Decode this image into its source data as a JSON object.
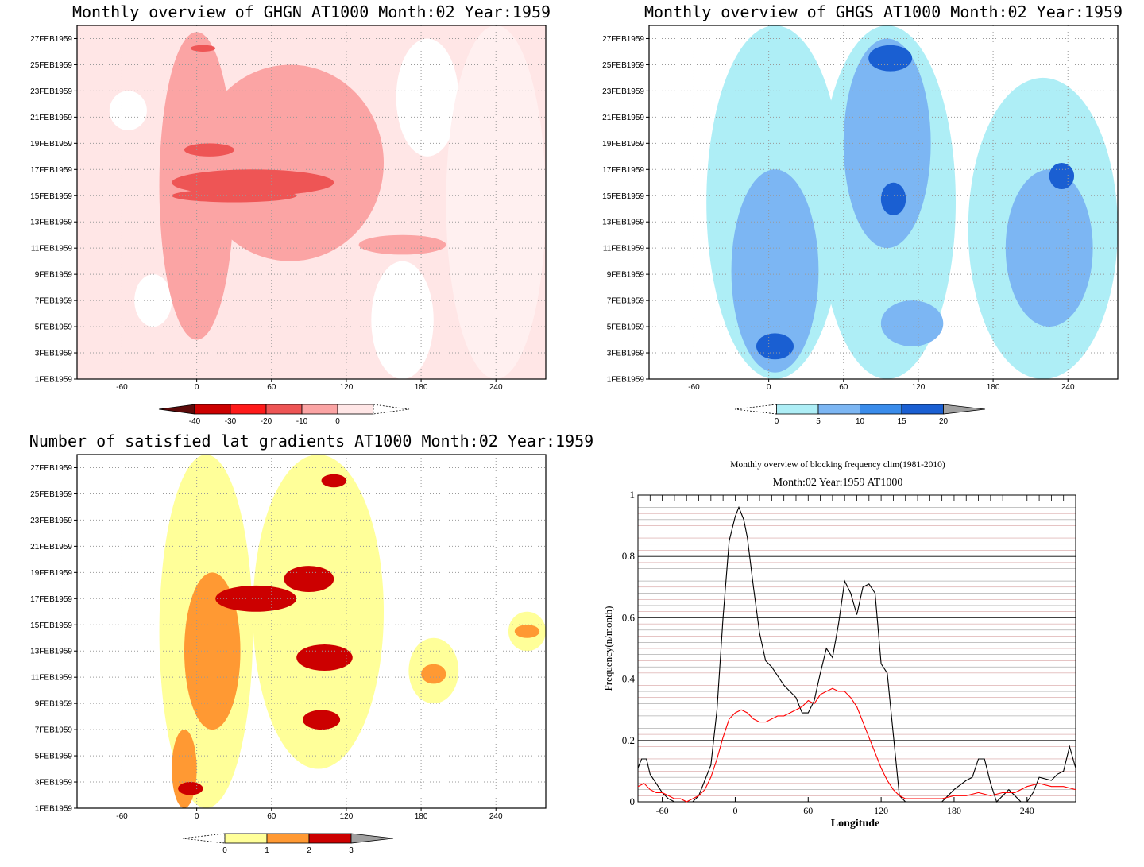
{
  "chart_data": [
    {
      "type": "heatmap",
      "title": "Monthly overview of GHGN AT1000 Month:02 Year:1959",
      "x_ticks": [
        -60,
        0,
        60,
        120,
        180,
        240
      ],
      "xlim": [
        -96,
        280
      ],
      "y_ticks": [
        "1FEB1959",
        "3FEB1959",
        "5FEB1959",
        "7FEB1959",
        "9FEB1959",
        "11FEB1959",
        "13FEB1959",
        "15FEB1959",
        "17FEB1959",
        "19FEB1959",
        "21FEB1959",
        "23FEB1959",
        "25FEB1959",
        "27FEB1959"
      ],
      "ylim": [
        1,
        28
      ],
      "grid": true,
      "colorbar": {
        "levels": [
          "-40",
          "-30",
          "-20",
          "-10",
          "0"
        ],
        "colors": [
          "#5c0a0a",
          "#cc0000",
          "#ff1a1a",
          "#ee5555",
          "#fba4a4",
          "#ffe6e6",
          "#ffffff"
        ]
      },
      "cells": [
        {
          "lon": [
            -30,
            30
          ],
          "day": [
            4,
            27.5
          ],
          "level": 2
        },
        {
          "lon": [
            0,
            150
          ],
          "day": [
            10,
            25
          ],
          "level": 2
        },
        {
          "lon": [
            -20,
            80
          ],
          "day": [
            14.5,
            15.5
          ],
          "level": 3
        },
        {
          "lon": [
            -20,
            110
          ],
          "day": [
            15,
            17
          ],
          "level": 3
        },
        {
          "lon": [
            -10,
            30
          ],
          "day": [
            18,
            19
          ],
          "level": 3
        },
        {
          "lon": [
            130,
            200
          ],
          "day": [
            10.5,
            12
          ],
          "level": 2
        },
        {
          "lon": [
            -5,
            15
          ],
          "day": [
            26,
            26.5
          ],
          "level": 3
        }
      ]
    },
    {
      "type": "heatmap",
      "title": "Monthly overview of GHGS AT1000 Month:02 Year:1959",
      "x_ticks": [
        -60,
        0,
        60,
        120,
        180,
        240
      ],
      "xlim": [
        -96,
        280
      ],
      "y_ticks": [
        "1FEB1959",
        "3FEB1959",
        "5FEB1959",
        "7FEB1959",
        "9FEB1959",
        "11FEB1959",
        "13FEB1959",
        "15FEB1959",
        "17FEB1959",
        "19FEB1959",
        "21FEB1959",
        "23FEB1959",
        "25FEB1959",
        "27FEB1959"
      ],
      "ylim": [
        1,
        28
      ],
      "grid": true,
      "colorbar": {
        "levels": [
          "0",
          "5",
          "10",
          "15",
          "20"
        ],
        "colors": [
          "#ffffff",
          "#aeeef6",
          "#7cb6f3",
          "#3a8ceb",
          "#1a5fd2",
          "#a0a0a0"
        ]
      },
      "cells": [
        {
          "lon": [
            -30,
            40
          ],
          "day": [
            1.5,
            17
          ],
          "level": 1
        },
        {
          "lon": [
            -10,
            20
          ],
          "day": [
            2.5,
            4.5
          ],
          "level": 3
        },
        {
          "lon": [
            60,
            130
          ],
          "day": [
            11,
            27
          ],
          "level": 1
        },
        {
          "lon": [
            80,
            115
          ],
          "day": [
            24.5,
            26.5
          ],
          "level": 3
        },
        {
          "lon": [
            90,
            110
          ],
          "day": [
            13.5,
            16
          ],
          "level": 3
        },
        {
          "lon": [
            90,
            140
          ],
          "day": [
            3.5,
            7
          ],
          "level": 1
        },
        {
          "lon": [
            190,
            260
          ],
          "day": [
            5,
            17
          ],
          "level": 1
        },
        {
          "lon": [
            225,
            245
          ],
          "day": [
            15.5,
            17.5
          ],
          "level": 3
        }
      ]
    },
    {
      "type": "heatmap",
      "title": "Number of satisfied lat gradients AT1000 Month:02 Year:1959",
      "x_ticks": [
        -60,
        0,
        60,
        120,
        180,
        240
      ],
      "xlim": [
        -96,
        280
      ],
      "y_ticks": [
        "1FEB1959",
        "3FEB1959",
        "5FEB1959",
        "7FEB1959",
        "9FEB1959",
        "11FEB1959",
        "13FEB1959",
        "15FEB1959",
        "17FEB1959",
        "19FEB1959",
        "21FEB1959",
        "23FEB1959",
        "25FEB1959",
        "27FEB1959"
      ],
      "ylim": [
        1,
        28
      ],
      "grid": true,
      "colorbar": {
        "levels": [
          "0",
          "1",
          "2",
          "3"
        ],
        "colors": [
          "#ffffff",
          "#ffff99",
          "#ff9933",
          "#cc0000",
          "#a0a0a0"
        ]
      },
      "cells": [
        {
          "lon": [
            -20,
            0
          ],
          "day": [
            1,
            7
          ],
          "level": 2
        },
        {
          "lon": [
            -15,
            5
          ],
          "day": [
            2,
            3
          ],
          "level": 3
        },
        {
          "lon": [
            -10,
            35
          ],
          "day": [
            7,
            19
          ],
          "level": 2
        },
        {
          "lon": [
            15,
            80
          ],
          "day": [
            16,
            18
          ],
          "level": 3
        },
        {
          "lon": [
            70,
            110
          ],
          "day": [
            17.5,
            19.5
          ],
          "level": 3
        },
        {
          "lon": [
            80,
            125
          ],
          "day": [
            11.5,
            13.5
          ],
          "level": 3
        },
        {
          "lon": [
            85,
            115
          ],
          "day": [
            7,
            8.5
          ],
          "level": 3
        },
        {
          "lon": [
            100,
            120
          ],
          "day": [
            25.5,
            26.5
          ],
          "level": 3
        },
        {
          "lon": [
            180,
            200
          ],
          "day": [
            10.5,
            12
          ],
          "level": 2
        },
        {
          "lon": [
            255,
            275
          ],
          "day": [
            14,
            15
          ],
          "level": 2
        }
      ]
    },
    {
      "type": "line",
      "title": "Monthly overview of blocking frequency clim(1981-2010)",
      "subtitle": "Month:02 Year:1959  AT1000",
      "xlabel": "Longitude",
      "ylabel": "Frequency(n/month)",
      "xlim": [
        -80,
        280
      ],
      "ylim": [
        0,
        1
      ],
      "x_ticks": [
        -60,
        0,
        60,
        120,
        180,
        240
      ],
      "y_ticks": [
        "0",
        "0.2",
        "0.4",
        "0.6",
        "0.8",
        "1"
      ],
      "series": [
        {
          "color": "#000000",
          "x": [
            -80,
            -77,
            -73,
            -70,
            -65,
            -60,
            -55,
            -50,
            -45,
            -40,
            -35,
            -30,
            -25,
            -20,
            -15,
            -10,
            -5,
            0,
            3,
            7,
            10,
            15,
            20,
            25,
            30,
            35,
            40,
            45,
            50,
            55,
            60,
            65,
            70,
            75,
            80,
            85,
            90,
            95,
            100,
            105,
            110,
            115,
            120,
            125,
            130,
            135,
            140,
            150,
            160,
            170,
            175,
            180,
            190,
            195,
            200,
            205,
            210,
            215,
            220,
            225,
            230,
            235,
            240,
            245,
            250,
            260,
            265,
            270,
            275,
            280
          ],
          "y": [
            0.11,
            0.14,
            0.14,
            0.09,
            0.06,
            0.03,
            0.01,
            0,
            0,
            0,
            0,
            0.02,
            0.07,
            0.12,
            0.3,
            0.6,
            0.85,
            0.93,
            0.96,
            0.92,
            0.86,
            0.7,
            0.55,
            0.46,
            0.44,
            0.41,
            0.38,
            0.36,
            0.34,
            0.29,
            0.29,
            0.33,
            0.42,
            0.5,
            0.47,
            0.58,
            0.72,
            0.68,
            0.61,
            0.7,
            0.71,
            0.68,
            0.45,
            0.42,
            0.22,
            0.02,
            0,
            0,
            0,
            0,
            0.02,
            0.04,
            0.07,
            0.08,
            0.14,
            0.14,
            0.06,
            0,
            0.02,
            0.04,
            0.02,
            0,
            0,
            0.03,
            0.08,
            0.07,
            0.09,
            0.1,
            0.18,
            0.11
          ]
        },
        {
          "color": "#ff0000",
          "x": [
            -80,
            -75,
            -70,
            -65,
            -60,
            -55,
            -50,
            -45,
            -40,
            -35,
            -30,
            -25,
            -20,
            -15,
            -10,
            -5,
            0,
            5,
            10,
            15,
            20,
            25,
            30,
            35,
            40,
            45,
            50,
            55,
            60,
            65,
            70,
            75,
            80,
            85,
            90,
            95,
            100,
            105,
            110,
            115,
            120,
            125,
            130,
            135,
            140,
            150,
            160,
            170,
            180,
            190,
            200,
            210,
            220,
            230,
            240,
            250,
            260,
            270,
            280
          ],
          "y": [
            0.05,
            0.06,
            0.04,
            0.03,
            0.03,
            0.02,
            0.01,
            0.01,
            0,
            0.01,
            0.02,
            0.04,
            0.08,
            0.14,
            0.21,
            0.27,
            0.29,
            0.3,
            0.29,
            0.27,
            0.26,
            0.26,
            0.27,
            0.28,
            0.28,
            0.29,
            0.3,
            0.31,
            0.33,
            0.32,
            0.35,
            0.36,
            0.37,
            0.36,
            0.36,
            0.34,
            0.31,
            0.26,
            0.21,
            0.16,
            0.11,
            0.07,
            0.04,
            0.02,
            0.01,
            0.01,
            0.01,
            0.01,
            0.02,
            0.02,
            0.03,
            0.02,
            0.03,
            0.03,
            0.05,
            0.06,
            0.05,
            0.05,
            0.04
          ]
        }
      ]
    }
  ]
}
